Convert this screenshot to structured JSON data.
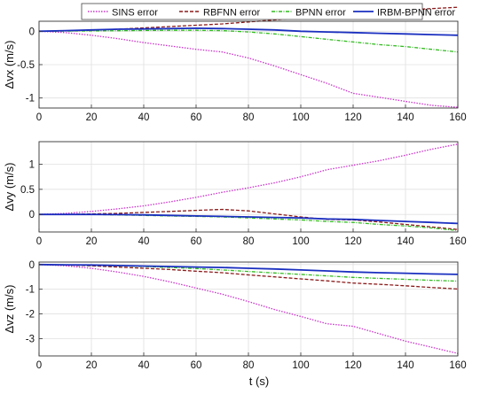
{
  "colors": {
    "sins": "#cc33cc",
    "rbfnn": "#8b1a1a",
    "bpnn": "#33bb22",
    "irbm": "#1a2fbf",
    "grid": "#e0e0e0",
    "axis": "#333333"
  },
  "legend": [
    "SINS error",
    "RBFNN error",
    "BPNN error",
    "IRBM-BPNN error"
  ],
  "xlabel": "t (s)",
  "chart_data": [
    {
      "type": "line",
      "ylabel": "Δvx (m/s)",
      "xlim": [
        0,
        160
      ],
      "ylim": [
        -1.15,
        0.15
      ],
      "xticks": [
        0,
        20,
        40,
        60,
        80,
        100,
        120,
        140,
        160
      ],
      "yticks": [
        0,
        -0.5,
        -1
      ],
      "ytick_labels": [
        "0",
        "-0.5",
        "-1"
      ],
      "grid": true,
      "legend_position": "top",
      "x": [
        0,
        10,
        20,
        30,
        40,
        50,
        60,
        70,
        80,
        90,
        100,
        110,
        120,
        130,
        140,
        150,
        160
      ],
      "series": [
        {
          "name": "SINS error",
          "values": [
            0,
            -0.02,
            -0.06,
            -0.11,
            -0.17,
            -0.22,
            -0.27,
            -0.31,
            -0.4,
            -0.52,
            -0.65,
            -0.78,
            -0.93,
            -0.99,
            -1.05,
            -1.11,
            -1.14
          ]
        },
        {
          "name": "RBFNN error",
          "values": [
            0,
            0.005,
            0.015,
            0.03,
            0.05,
            0.07,
            0.09,
            0.11,
            0.14,
            0.17,
            0.2,
            0.24,
            0.28,
            0.3,
            0.32,
            0.34,
            0.36
          ]
        },
        {
          "name": "BPNN error",
          "values": [
            0,
            0.003,
            0.005,
            0.008,
            0.012,
            0.015,
            0.015,
            0.01,
            -0.01,
            -0.04,
            -0.08,
            -0.12,
            -0.16,
            -0.2,
            -0.23,
            -0.27,
            -0.31
          ]
        },
        {
          "name": "IRBM-BPNN error",
          "values": [
            0,
            0.01,
            0.02,
            0.03,
            0.035,
            0.04,
            0.045,
            0.04,
            0.03,
            0.02,
            0.0,
            -0.01,
            -0.02,
            -0.03,
            -0.04,
            -0.05,
            -0.06
          ]
        }
      ]
    },
    {
      "type": "line",
      "ylabel": "Δvy (m/s)",
      "xlim": [
        0,
        160
      ],
      "ylim": [
        -0.35,
        1.45
      ],
      "xticks": [
        0,
        20,
        40,
        60,
        80,
        100,
        120,
        140,
        160
      ],
      "yticks": [
        0,
        0.5,
        1
      ],
      "ytick_labels": [
        "0",
        "0.5",
        "1"
      ],
      "grid": true,
      "x": [
        0,
        10,
        20,
        30,
        40,
        50,
        60,
        70,
        80,
        90,
        100,
        110,
        120,
        130,
        140,
        150,
        160
      ],
      "series": [
        {
          "name": "SINS error",
          "values": [
            0,
            0.02,
            0.06,
            0.11,
            0.17,
            0.25,
            0.34,
            0.44,
            0.53,
            0.63,
            0.75,
            0.89,
            0.98,
            1.07,
            1.18,
            1.3,
            1.4
          ]
        },
        {
          "name": "RBFNN error",
          "values": [
            0,
            0.0,
            0.01,
            0.02,
            0.04,
            0.06,
            0.08,
            0.1,
            0.07,
            0.01,
            -0.05,
            -0.1,
            -0.11,
            -0.15,
            -0.2,
            -0.25,
            -0.3
          ]
        },
        {
          "name": "BPNN error",
          "values": [
            0,
            0.0,
            0.0,
            -0.01,
            -0.02,
            -0.03,
            -0.04,
            -0.05,
            -0.07,
            -0.09,
            -0.11,
            -0.14,
            -0.16,
            -0.2,
            -0.23,
            -0.27,
            -0.32
          ]
        },
        {
          "name": "IRBM-BPNN error",
          "values": [
            0,
            0.0,
            0.0,
            -0.005,
            -0.01,
            -0.02,
            -0.03,
            -0.04,
            -0.05,
            -0.06,
            -0.07,
            -0.09,
            -0.1,
            -0.12,
            -0.14,
            -0.16,
            -0.18
          ]
        }
      ]
    },
    {
      "type": "line",
      "ylabel": "Δvz (m/s)",
      "xlim": [
        0,
        160
      ],
      "ylim": [
        -3.7,
        0.1
      ],
      "xticks": [
        0,
        20,
        40,
        60,
        80,
        100,
        120,
        140,
        160
      ],
      "xtick_labels": [
        "0",
        "20",
        "40",
        "60",
        "80",
        "100",
        "120",
        "140",
        "160"
      ],
      "yticks": [
        0,
        -1,
        -2,
        -3
      ],
      "ytick_labels": [
        "0",
        "-1",
        "-2",
        "-3"
      ],
      "grid": true,
      "x": [
        0,
        10,
        20,
        30,
        40,
        50,
        60,
        70,
        80,
        90,
        100,
        110,
        120,
        130,
        140,
        150,
        160
      ],
      "series": [
        {
          "name": "SINS error",
          "values": [
            0,
            -0.05,
            -0.15,
            -0.3,
            -0.48,
            -0.7,
            -0.95,
            -1.2,
            -1.5,
            -1.82,
            -2.1,
            -2.4,
            -2.5,
            -2.8,
            -3.1,
            -3.35,
            -3.6
          ]
        },
        {
          "name": "RBFNN error",
          "values": [
            0,
            -0.02,
            -0.05,
            -0.1,
            -0.15,
            -0.2,
            -0.27,
            -0.33,
            -0.42,
            -0.5,
            -0.58,
            -0.66,
            -0.75,
            -0.8,
            -0.86,
            -0.93,
            -0.99
          ]
        },
        {
          "name": "BPNN error",
          "values": [
            0,
            -0.01,
            -0.03,
            -0.05,
            -0.08,
            -0.12,
            -0.16,
            -0.22,
            -0.28,
            -0.34,
            -0.4,
            -0.46,
            -0.52,
            -0.56,
            -0.6,
            -0.64,
            -0.67
          ]
        },
        {
          "name": "IRBM-BPNN error",
          "values": [
            0,
            -0.01,
            -0.02,
            -0.04,
            -0.06,
            -0.08,
            -0.1,
            -0.12,
            -0.15,
            -0.18,
            -0.22,
            -0.26,
            -0.3,
            -0.33,
            -0.35,
            -0.38,
            -0.4
          ]
        }
      ]
    }
  ]
}
